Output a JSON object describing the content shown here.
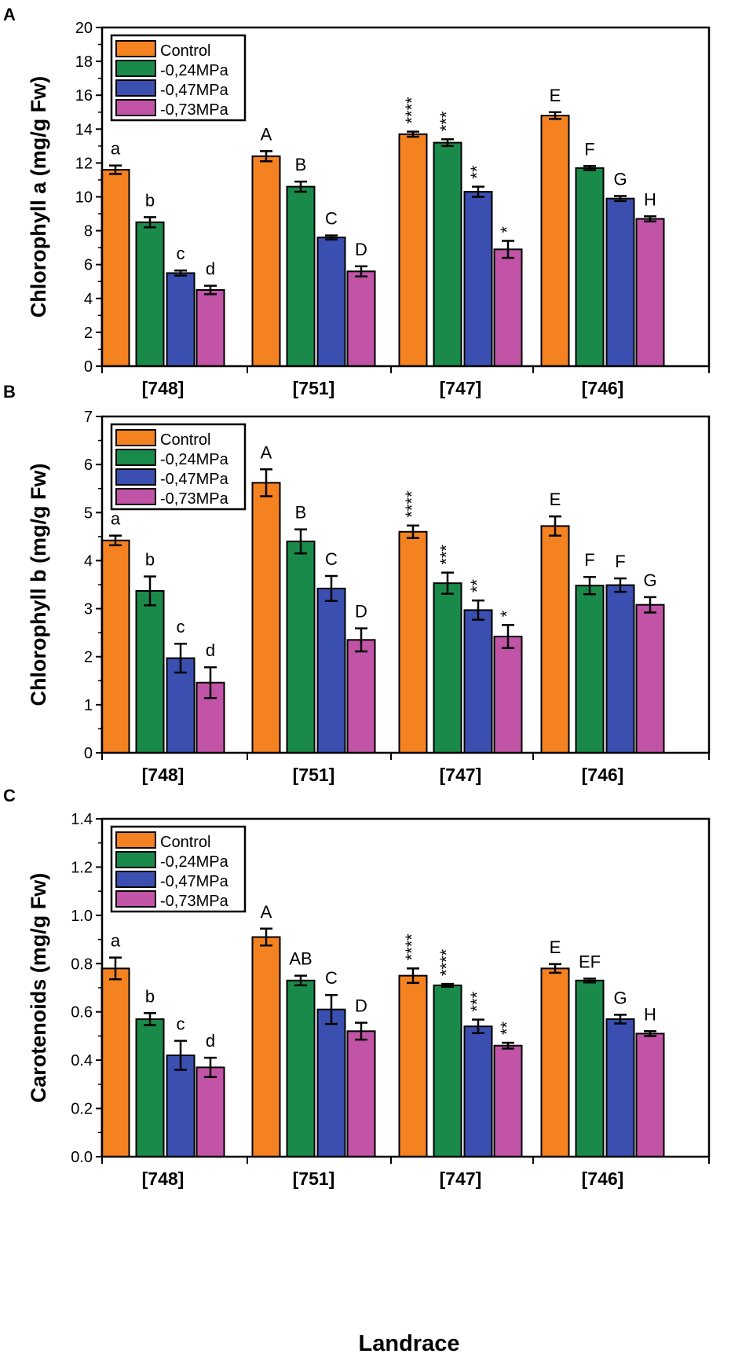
{
  "series_colors": [
    "#f58220",
    "#1a8a4a",
    "#3b4fb0",
    "#c154a6"
  ],
  "x_axis_title": "Landrace",
  "chart_data": [
    {
      "type": "bar",
      "panel_label": "A",
      "ylabel": "Chlorophyll a (mg/g Fw)",
      "ylim": [
        0,
        20
      ],
      "yticks": [
        0,
        2,
        4,
        6,
        8,
        10,
        12,
        14,
        16,
        18,
        20
      ],
      "categories": [
        "[748]",
        "[751]",
        "[747]",
        "[746]"
      ],
      "legend": {
        "position": "top-left"
      },
      "series": [
        {
          "name": "Control",
          "values": [
            11.6,
            12.4,
            13.7,
            14.8
          ],
          "errors": [
            0.25,
            0.3,
            0.15,
            0.2
          ],
          "labels": [
            "a",
            "A",
            "****",
            "E"
          ]
        },
        {
          "name": "-0,24MPa",
          "values": [
            8.5,
            10.6,
            13.2,
            11.7
          ],
          "errors": [
            0.3,
            0.3,
            0.2,
            0.12
          ],
          "labels": [
            "b",
            "B",
            "***",
            "F"
          ]
        },
        {
          "name": "-0,47MPa",
          "values": [
            5.5,
            7.6,
            10.3,
            9.9
          ],
          "errors": [
            0.15,
            0.12,
            0.3,
            0.15
          ],
          "labels": [
            "c",
            "C",
            "**",
            "G"
          ]
        },
        {
          "name": "-0,73MPa",
          "values": [
            4.5,
            5.6,
            6.9,
            8.7
          ],
          "errors": [
            0.25,
            0.3,
            0.5,
            0.15
          ],
          "labels": [
            "d",
            "D",
            "*",
            "H"
          ]
        }
      ]
    },
    {
      "type": "bar",
      "panel_label": "B",
      "ylabel": "Chlorophyll b (mg/g Fw)",
      "ylim": [
        0,
        7
      ],
      "yticks": [
        0,
        1,
        2,
        3,
        4,
        5,
        6,
        7
      ],
      "categories": [
        "[748]",
        "[751]",
        "[747]",
        "[746]"
      ],
      "legend": {
        "position": "top-left"
      },
      "series": [
        {
          "name": "Control",
          "values": [
            4.42,
            5.62,
            4.6,
            4.72
          ],
          "errors": [
            0.1,
            0.28,
            0.13,
            0.2
          ],
          "labels": [
            "a",
            "A",
            "****",
            "E"
          ]
        },
        {
          "name": "-0,24MPa",
          "values": [
            3.37,
            4.4,
            3.53,
            3.48
          ],
          "errors": [
            0.3,
            0.25,
            0.22,
            0.18
          ],
          "labels": [
            "b",
            "B",
            "***",
            "F"
          ]
        },
        {
          "name": "-0,47MPa",
          "values": [
            1.97,
            3.42,
            2.97,
            3.49
          ],
          "errors": [
            0.3,
            0.26,
            0.2,
            0.14
          ],
          "labels": [
            "c",
            "C",
            "**",
            "F"
          ]
        },
        {
          "name": "-0,73MPa",
          "values": [
            1.46,
            2.35,
            2.42,
            3.08
          ],
          "errors": [
            0.32,
            0.24,
            0.24,
            0.16
          ],
          "labels": [
            "d",
            "D",
            "*",
            "G"
          ]
        }
      ]
    },
    {
      "type": "bar",
      "panel_label": "C",
      "ylabel": "Carotenoids (mg/g Fw)",
      "ylim": [
        0,
        1.4
      ],
      "yticks": [
        "0.0",
        "0.2",
        "0.4",
        "0.6",
        "0.8",
        "1.0",
        "1.2",
        "1.4"
      ],
      "categories": [
        "[748]",
        "[751]",
        "[747]",
        "[746]"
      ],
      "legend": {
        "position": "top-left"
      },
      "series": [
        {
          "name": "Control",
          "values": [
            0.78,
            0.91,
            0.75,
            0.78
          ],
          "errors": [
            0.045,
            0.035,
            0.03,
            0.018
          ],
          "labels": [
            "a",
            "A",
            "****",
            "E"
          ]
        },
        {
          "name": "-0,24MPa",
          "values": [
            0.57,
            0.73,
            0.71,
            0.73
          ],
          "errors": [
            0.025,
            0.02,
            0.006,
            0.008
          ],
          "labels": [
            "b",
            "AB",
            "****",
            "EF"
          ]
        },
        {
          "name": "-0,47MPa",
          "values": [
            0.42,
            0.61,
            0.54,
            0.57
          ],
          "errors": [
            0.06,
            0.06,
            0.028,
            0.018
          ],
          "labels": [
            "c",
            "C",
            "***",
            "G"
          ]
        },
        {
          "name": "-0,73MPa",
          "values": [
            0.37,
            0.52,
            0.46,
            0.51
          ],
          "errors": [
            0.04,
            0.035,
            0.012,
            0.01
          ],
          "labels": [
            "d",
            "D",
            "**",
            "H"
          ]
        }
      ]
    }
  ]
}
